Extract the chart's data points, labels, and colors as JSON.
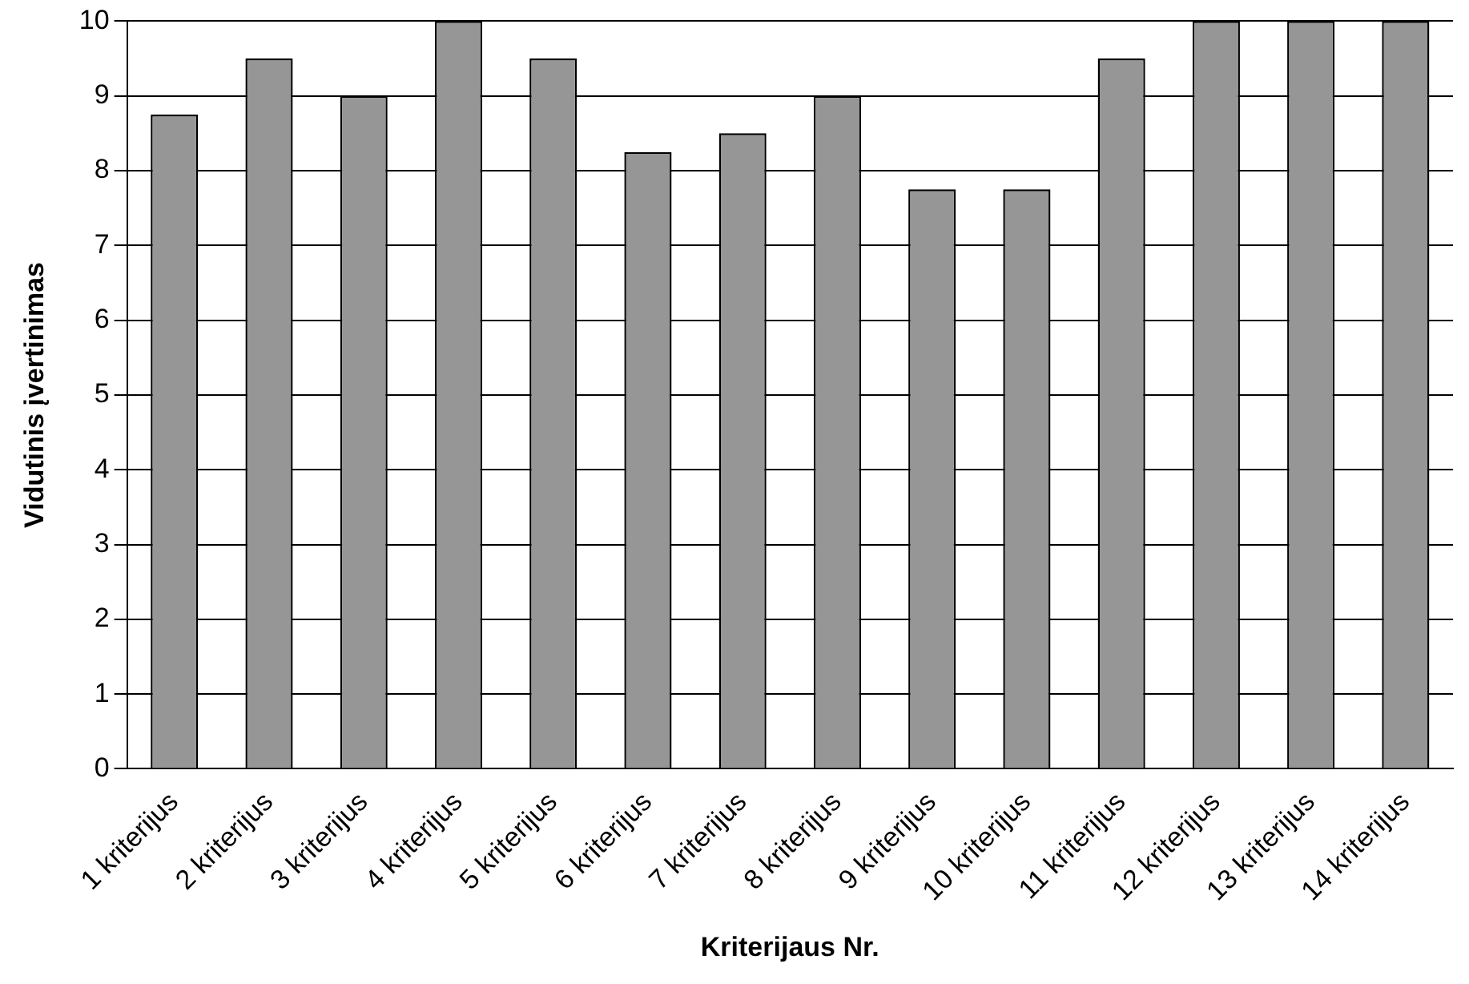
{
  "chart_data": {
    "type": "bar",
    "xlabel": "Kriterijaus Nr.",
    "ylabel": "Vidutinis įvertinimas",
    "categories": [
      "1 kriterijus",
      "2 kriterijus",
      "3 kriterijus",
      "4 kriterijus",
      "5 kriterijus",
      "6 kriterijus",
      "7 kriterijus",
      "8 kriterijus",
      "9 kriterijus",
      "10 kriterijus",
      "11 kriterijus",
      "12 kriterijus",
      "13 kriterijus",
      "14 kriterijus"
    ],
    "values": [
      8.75,
      9.5,
      9,
      10,
      9.5,
      8.25,
      8.5,
      9,
      7.75,
      7.75,
      9.5,
      10,
      10,
      10
    ],
    "color": "#969696",
    "ylim": [
      0,
      10
    ],
    "yticks": [
      0,
      1,
      2,
      3,
      4,
      5,
      6,
      7,
      8,
      9,
      10
    ],
    "grid": "y",
    "legend": false
  }
}
